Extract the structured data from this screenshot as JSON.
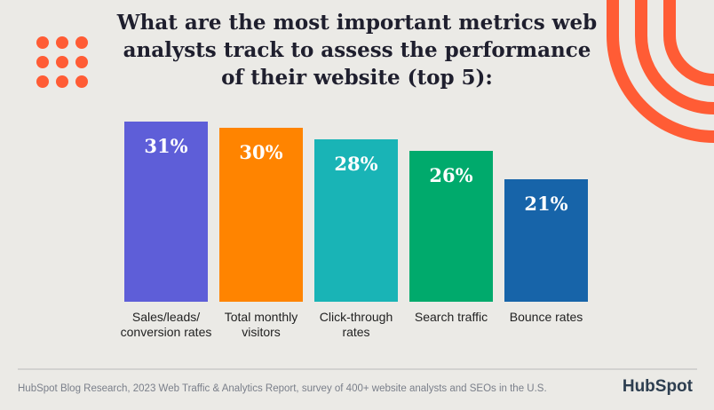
{
  "chart_data": {
    "type": "bar",
    "title": [
      "What are the most important metrics web",
      "analysts track to assess the performance",
      "of their website (top 5):"
    ],
    "categories": [
      "Sales/leads/ conversion rates",
      "Total monthly visitors",
      "Click-through rates",
      "Search traffic",
      "Bounce rates"
    ],
    "values": [
      31,
      30,
      28,
      26,
      21
    ],
    "value_labels": [
      "31%",
      "30%",
      "28%",
      "26%",
      "21%"
    ],
    "colors": [
      "#5e5ed8",
      "#ff8400",
      "#19b4b6",
      "#00aa6c",
      "#1764a9"
    ],
    "source": "HubSpot Blog Research, 2023 Web Traffic & Analytics Report, survey of 400+ website analysts and SEOs in the U.S.",
    "logo": "HubSpot"
  }
}
